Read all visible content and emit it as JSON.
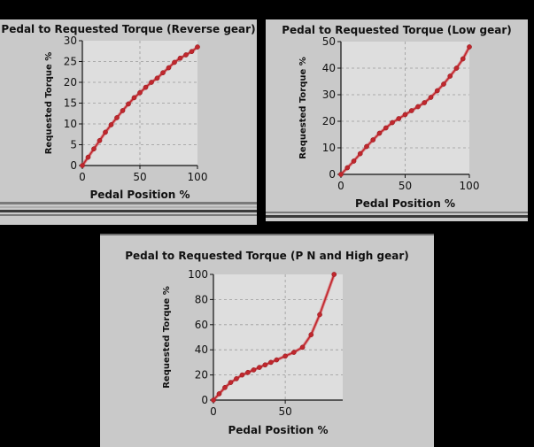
{
  "chart_data": [
    {
      "type": "line",
      "title": "Pedal to Requested Torque (Reverse gear)",
      "xlabel": "Pedal Position %",
      "ylabel": "Requested Torque %",
      "xlim": [
        0,
        100
      ],
      "ylim": [
        0,
        30
      ],
      "xticks": [
        "0",
        "50",
        "100"
      ],
      "yticks": [
        "0",
        "5",
        "10",
        "15",
        "20",
        "25",
        "30"
      ],
      "grid": true,
      "series": [
        {
          "x": [
            0,
            5,
            10,
            15,
            20,
            25,
            30,
            35,
            40,
            45,
            50,
            55,
            60,
            65,
            70,
            75,
            80,
            85,
            90,
            95,
            100
          ],
          "y": [
            0,
            2,
            4,
            6,
            8,
            9.8,
            11.5,
            13.2,
            14.8,
            16.3,
            17.5,
            18.8,
            20,
            21,
            22.3,
            23.5,
            24.8,
            25.8,
            26.6,
            27.4,
            28.5
          ]
        }
      ]
    },
    {
      "type": "line",
      "title": "Pedal to Requested Torque (Low gear)",
      "xlabel": "Pedal Position %",
      "ylabel": "Requested Torque %",
      "xlim": [
        0,
        100
      ],
      "ylim": [
        0,
        50
      ],
      "xticks": [
        "0",
        "50",
        "100"
      ],
      "yticks": [
        "0",
        "10",
        "20",
        "30",
        "40",
        "50"
      ],
      "grid": true,
      "series": [
        {
          "x": [
            0,
            5,
            10,
            15,
            20,
            25,
            30,
            35,
            40,
            45,
            50,
            55,
            60,
            65,
            70,
            75,
            80,
            85,
            90,
            95,
            100
          ],
          "y": [
            0,
            2.5,
            5,
            7.8,
            10.5,
            13,
            15.5,
            17.5,
            19.5,
            21,
            22.5,
            24,
            25.5,
            27,
            29,
            31.5,
            34,
            37,
            40,
            43.5,
            48
          ]
        }
      ]
    },
    {
      "type": "line",
      "title": "Pedal to Requested Torque (P N and High gear)",
      "xlabel": "Pedal Position %",
      "ylabel": "Requested Torque %",
      "xlim": [
        0,
        90
      ],
      "ylim": [
        0,
        100
      ],
      "xticks": [
        "0",
        "50"
      ],
      "yticks": [
        "0",
        "20",
        "40",
        "60",
        "80",
        "100"
      ],
      "grid": true,
      "series": [
        {
          "x": [
            0,
            4,
            8,
            12,
            16,
            20,
            24,
            28,
            32,
            36,
            40,
            44,
            50,
            56,
            62,
            68,
            74,
            84
          ],
          "y": [
            0,
            5,
            10,
            14,
            17,
            20,
            22,
            24,
            26,
            28,
            30,
            32,
            35,
            38,
            42,
            52,
            68,
            100
          ]
        }
      ]
    }
  ]
}
